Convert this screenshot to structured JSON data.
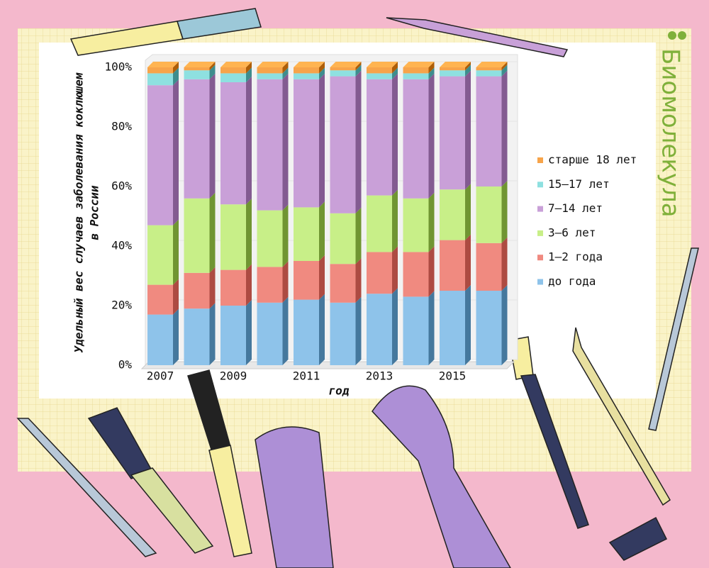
{
  "brand": "Биомолекула",
  "chart_data": {
    "type": "stacked-bar-3d",
    "ylabel": [
      "Удельный вес случаев заболевания коклюшем",
      "в России"
    ],
    "xlabel": "год",
    "categories": [
      "2007",
      null,
      "2009",
      null,
      "2011",
      null,
      "2013",
      null,
      "2015",
      null
    ],
    "ylim": [
      0,
      100
    ],
    "yticks": [
      {
        "value": 0,
        "label": "0%"
      },
      {
        "value": 20,
        "label": "20%"
      },
      {
        "value": 40,
        "label": "40%"
      },
      {
        "value": 60,
        "label": "60%"
      },
      {
        "value": 80,
        "label": "80%"
      },
      {
        "value": 100,
        "label": "100%"
      }
    ],
    "series": [
      {
        "name": "до года",
        "color": "#8ec3ea",
        "values": [
          17,
          19,
          20,
          21,
          22,
          21,
          24,
          23,
          25,
          25
        ]
      },
      {
        "name": "1–2 года",
        "color": "#f08a80",
        "values": [
          10,
          12,
          12,
          12,
          13,
          13,
          14,
          15,
          17,
          16
        ]
      },
      {
        "name": "3–6 лет",
        "color": "#c8ef88",
        "values": [
          20,
          25,
          22,
          19,
          18,
          17,
          19,
          18,
          17,
          19
        ]
      },
      {
        "name": "7–14 лет",
        "color": "#c9a0d8",
        "values": [
          47,
          40,
          41,
          44,
          43,
          46,
          39,
          40,
          38,
          37
        ]
      },
      {
        "name": "15–17 лет",
        "color": "#8ee0e0",
        "values": [
          4,
          3,
          3,
          2,
          2,
          2,
          2,
          2,
          2,
          2
        ]
      },
      {
        "name": "старше 18 лет",
        "color": "#f7a44a",
        "values": [
          2,
          1,
          2,
          2,
          2,
          1,
          2,
          2,
          1,
          1
        ]
      }
    ]
  }
}
